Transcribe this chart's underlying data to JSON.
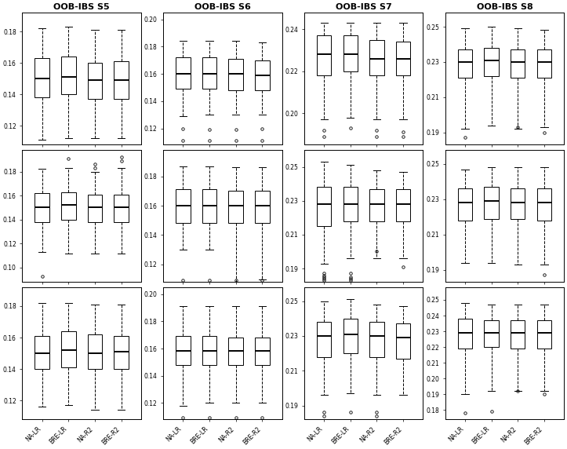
{
  "titles": [
    "OOB-IBS S5",
    "OOB-IBS S6",
    "OOB-IBS S7",
    "OOB-IBS S8"
  ],
  "xlabels": [
    "NA-LR",
    "BRE-LR",
    "NA-R2",
    "BRE-R2"
  ],
  "scenario_order": [
    "S5",
    "S6",
    "S7",
    "S8"
  ],
  "row_order": [
    "a",
    "b",
    "c"
  ],
  "cells": {
    "S5_a": {
      "ylim": [
        0.108,
        0.192
      ],
      "yticks": [
        0.12,
        0.14,
        0.16,
        0.18
      ],
      "boxes": [
        {
          "q1": 0.138,
          "med": 0.15,
          "q3": 0.163,
          "whislo": 0.111,
          "whishi": 0.182,
          "fliers": []
        },
        {
          "q1": 0.14,
          "med": 0.151,
          "q3": 0.164,
          "whislo": 0.112,
          "whishi": 0.183,
          "fliers": []
        },
        {
          "q1": 0.137,
          "med": 0.149,
          "q3": 0.16,
          "whislo": 0.112,
          "whishi": 0.181,
          "fliers": []
        },
        {
          "q1": 0.137,
          "med": 0.149,
          "q3": 0.161,
          "whislo": 0.112,
          "whishi": 0.181,
          "fliers": []
        }
      ]
    },
    "S5_b": {
      "ylim": [
        0.088,
        0.198
      ],
      "yticks": [
        0.1,
        0.12,
        0.14,
        0.16,
        0.18
      ],
      "boxes": [
        {
          "q1": 0.138,
          "med": 0.15,
          "q3": 0.162,
          "whislo": 0.113,
          "whishi": 0.182,
          "fliers": [
            0.093
          ]
        },
        {
          "q1": 0.14,
          "med": 0.152,
          "q3": 0.163,
          "whislo": 0.112,
          "whishi": 0.183,
          "fliers": [
            0.191
          ]
        },
        {
          "q1": 0.138,
          "med": 0.15,
          "q3": 0.161,
          "whislo": 0.112,
          "whishi": 0.18,
          "fliers": [
            0.183,
            0.186
          ]
        },
        {
          "q1": 0.138,
          "med": 0.15,
          "q3": 0.161,
          "whislo": 0.112,
          "whishi": 0.183,
          "fliers": [
            0.192,
            0.189
          ]
        }
      ]
    },
    "S5_c": {
      "ylim": [
        0.108,
        0.192
      ],
      "yticks": [
        0.12,
        0.14,
        0.16,
        0.18
      ],
      "boxes": [
        {
          "q1": 0.14,
          "med": 0.15,
          "q3": 0.161,
          "whislo": 0.116,
          "whishi": 0.182,
          "fliers": []
        },
        {
          "q1": 0.141,
          "med": 0.152,
          "q3": 0.164,
          "whislo": 0.117,
          "whishi": 0.182,
          "fliers": []
        },
        {
          "q1": 0.14,
          "med": 0.15,
          "q3": 0.162,
          "whislo": 0.114,
          "whishi": 0.181,
          "fliers": []
        },
        {
          "q1": 0.14,
          "med": 0.151,
          "q3": 0.161,
          "whislo": 0.114,
          "whishi": 0.181,
          "fliers": []
        }
      ]
    },
    "S6_a": {
      "ylim": [
        0.108,
        0.205
      ],
      "yticks": [
        0.12,
        0.14,
        0.16,
        0.18,
        0.2
      ],
      "boxes": [
        {
          "q1": 0.149,
          "med": 0.16,
          "q3": 0.172,
          "whislo": 0.129,
          "whishi": 0.184,
          "fliers": [
            0.12,
            0.111
          ]
        },
        {
          "q1": 0.149,
          "med": 0.16,
          "q3": 0.172,
          "whislo": 0.13,
          "whishi": 0.184,
          "fliers": [
            0.119,
            0.111
          ]
        },
        {
          "q1": 0.148,
          "med": 0.16,
          "q3": 0.171,
          "whislo": 0.13,
          "whishi": 0.184,
          "fliers": [
            0.119,
            0.111
          ]
        },
        {
          "q1": 0.148,
          "med": 0.159,
          "q3": 0.17,
          "whislo": 0.13,
          "whishi": 0.183,
          "fliers": [
            0.12,
            0.111
          ]
        }
      ]
    },
    "S6_b": {
      "ylim": [
        0.108,
        0.198
      ],
      "yticks": [
        0.12,
        0.14,
        0.16,
        0.18
      ],
      "boxes": [
        {
          "q1": 0.148,
          "med": 0.16,
          "q3": 0.171,
          "whislo": 0.13,
          "whishi": 0.187,
          "fliers": [
            0.109
          ]
        },
        {
          "q1": 0.148,
          "med": 0.16,
          "q3": 0.171,
          "whislo": 0.13,
          "whishi": 0.187,
          "fliers": [
            0.109
          ]
        },
        {
          "q1": 0.148,
          "med": 0.16,
          "q3": 0.17,
          "whislo": 0.108,
          "whishi": 0.186,
          "fliers": [
            0.109
          ]
        },
        {
          "q1": 0.148,
          "med": 0.16,
          "q3": 0.17,
          "whislo": 0.11,
          "whishi": 0.186,
          "fliers": [
            0.109
          ]
        }
      ]
    },
    "S6_c": {
      "ylim": [
        0.108,
        0.205
      ],
      "yticks": [
        0.12,
        0.14,
        0.16,
        0.18,
        0.2
      ],
      "boxes": [
        {
          "q1": 0.148,
          "med": 0.158,
          "q3": 0.169,
          "whislo": 0.118,
          "whishi": 0.191,
          "fliers": [
            0.109
          ]
        },
        {
          "q1": 0.148,
          "med": 0.158,
          "q3": 0.169,
          "whislo": 0.12,
          "whishi": 0.191,
          "fliers": [
            0.109
          ]
        },
        {
          "q1": 0.148,
          "med": 0.158,
          "q3": 0.168,
          "whislo": 0.12,
          "whishi": 0.191,
          "fliers": [
            0.109
          ]
        },
        {
          "q1": 0.148,
          "med": 0.158,
          "q3": 0.168,
          "whislo": 0.12,
          "whishi": 0.191,
          "fliers": [
            0.109
          ]
        }
      ]
    },
    "S7_a": {
      "ylim": [
        0.185,
        0.248
      ],
      "yticks": [
        0.2,
        0.22,
        0.24
      ],
      "boxes": [
        {
          "q1": 0.218,
          "med": 0.228,
          "q3": 0.237,
          "whislo": 0.197,
          "whishi": 0.243,
          "fliers": [
            0.192,
            0.189
          ]
        },
        {
          "q1": 0.22,
          "med": 0.228,
          "q3": 0.237,
          "whislo": 0.198,
          "whishi": 0.243,
          "fliers": [
            0.193
          ]
        },
        {
          "q1": 0.218,
          "med": 0.226,
          "q3": 0.235,
          "whislo": 0.197,
          "whishi": 0.243,
          "fliers": [
            0.192,
            0.189
          ]
        },
        {
          "q1": 0.218,
          "med": 0.226,
          "q3": 0.234,
          "whislo": 0.197,
          "whishi": 0.243,
          "fliers": [
            0.191,
            0.189
          ]
        }
      ]
    },
    "S7_b": {
      "ylim": [
        0.182,
        0.26
      ],
      "yticks": [
        0.19,
        0.21,
        0.23,
        0.25
      ],
      "boxes": [
        {
          "q1": 0.215,
          "med": 0.228,
          "q3": 0.238,
          "whislo": 0.193,
          "whishi": 0.253,
          "fliers": [
            0.187,
            0.186,
            0.185,
            0.184,
            0.183
          ]
        },
        {
          "q1": 0.218,
          "med": 0.228,
          "q3": 0.238,
          "whislo": 0.196,
          "whishi": 0.251,
          "fliers": [
            0.187,
            0.185,
            0.184,
            0.183
          ]
        },
        {
          "q1": 0.218,
          "med": 0.228,
          "q3": 0.237,
          "whislo": 0.196,
          "whishi": 0.248,
          "fliers": [
            0.2
          ]
        },
        {
          "q1": 0.218,
          "med": 0.228,
          "q3": 0.237,
          "whislo": 0.196,
          "whishi": 0.247,
          "fliers": [
            0.191
          ]
        }
      ]
    },
    "S7_c": {
      "ylim": [
        0.182,
        0.258
      ],
      "yticks": [
        0.19,
        0.21,
        0.23,
        0.25
      ],
      "boxes": [
        {
          "q1": 0.218,
          "med": 0.23,
          "q3": 0.238,
          "whislo": 0.196,
          "whishi": 0.25,
          "fliers": [
            0.186,
            0.184
          ]
        },
        {
          "q1": 0.22,
          "med": 0.231,
          "q3": 0.24,
          "whislo": 0.197,
          "whishi": 0.251,
          "fliers": [
            0.186
          ]
        },
        {
          "q1": 0.218,
          "med": 0.23,
          "q3": 0.238,
          "whislo": 0.196,
          "whishi": 0.248,
          "fliers": [
            0.186,
            0.184
          ]
        },
        {
          "q1": 0.217,
          "med": 0.229,
          "q3": 0.237,
          "whislo": 0.196,
          "whishi": 0.247,
          "fliers": []
        }
      ]
    },
    "S8_a": {
      "ylim": [
        0.183,
        0.258
      ],
      "yticks": [
        0.19,
        0.21,
        0.23,
        0.25
      ],
      "boxes": [
        {
          "q1": 0.221,
          "med": 0.23,
          "q3": 0.237,
          "whislo": 0.192,
          "whishi": 0.249,
          "fliers": [
            0.187
          ]
        },
        {
          "q1": 0.222,
          "med": 0.231,
          "q3": 0.238,
          "whislo": 0.194,
          "whishi": 0.25,
          "fliers": []
        },
        {
          "q1": 0.221,
          "med": 0.23,
          "q3": 0.237,
          "whislo": 0.192,
          "whishi": 0.249,
          "fliers": [
            0.193
          ]
        },
        {
          "q1": 0.221,
          "med": 0.23,
          "q3": 0.237,
          "whislo": 0.193,
          "whishi": 0.248,
          "fliers": [
            0.19
          ]
        }
      ]
    },
    "S8_b": {
      "ylim": [
        0.183,
        0.258
      ],
      "yticks": [
        0.19,
        0.21,
        0.23,
        0.25
      ],
      "boxes": [
        {
          "q1": 0.218,
          "med": 0.228,
          "q3": 0.236,
          "whislo": 0.194,
          "whishi": 0.247,
          "fliers": []
        },
        {
          "q1": 0.219,
          "med": 0.229,
          "q3": 0.237,
          "whislo": 0.194,
          "whishi": 0.248,
          "fliers": []
        },
        {
          "q1": 0.219,
          "med": 0.228,
          "q3": 0.236,
          "whislo": 0.193,
          "whishi": 0.248,
          "fliers": []
        },
        {
          "q1": 0.218,
          "med": 0.228,
          "q3": 0.236,
          "whislo": 0.193,
          "whishi": 0.248,
          "fliers": [
            0.187
          ]
        }
      ]
    },
    "S8_c": {
      "ylim": [
        0.174,
        0.258
      ],
      "yticks": [
        0.18,
        0.19,
        0.2,
        0.21,
        0.22,
        0.23,
        0.24,
        0.25
      ],
      "boxes": [
        {
          "q1": 0.219,
          "med": 0.229,
          "q3": 0.238,
          "whislo": 0.19,
          "whishi": 0.248,
          "fliers": [
            0.178
          ]
        },
        {
          "q1": 0.22,
          "med": 0.229,
          "q3": 0.237,
          "whislo": 0.192,
          "whishi": 0.247,
          "fliers": [
            0.179
          ]
        },
        {
          "q1": 0.219,
          "med": 0.229,
          "q3": 0.237,
          "whislo": 0.192,
          "whishi": 0.247,
          "fliers": [
            0.192
          ]
        },
        {
          "q1": 0.219,
          "med": 0.229,
          "q3": 0.237,
          "whislo": 0.192,
          "whishi": 0.247,
          "fliers": [
            0.19
          ]
        }
      ]
    }
  }
}
